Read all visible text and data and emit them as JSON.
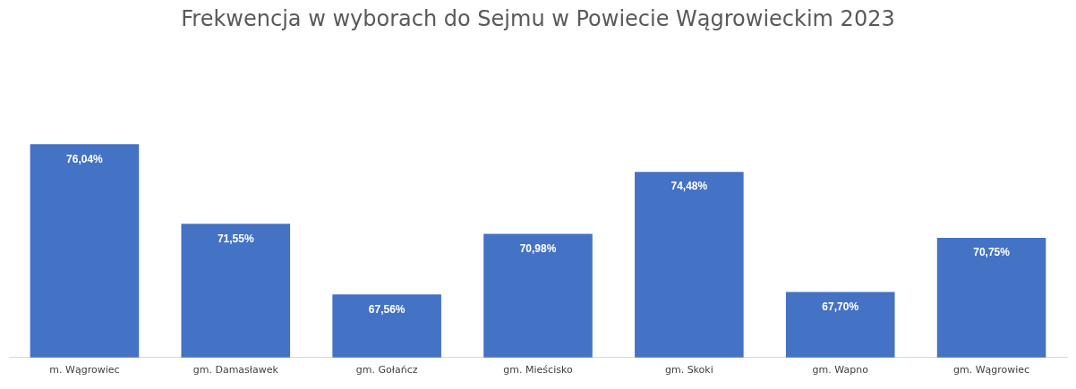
{
  "chart_data": {
    "type": "bar",
    "title": "Frekwencja w wyborach do Sejmu w Powiecie Wągrowieckim 2023",
    "categories": [
      "m. Wągrowiec",
      "gm. Damasławek",
      "gm. Gołańcz",
      "gm. Mieścisko",
      "gm. Skoki",
      "gm. Wapno",
      "gm. Wągrowiec"
    ],
    "values": [
      76.04,
      71.55,
      67.56,
      70.98,
      74.48,
      67.7,
      70.75
    ],
    "value_labels": [
      "76,04%",
      "71,55%",
      "67,56%",
      "70,98%",
      "74,48%",
      "67,70%",
      "70,75%"
    ],
    "color": "#4472c4",
    "tick_labels": "x",
    "grid": false,
    "legend": false
  }
}
